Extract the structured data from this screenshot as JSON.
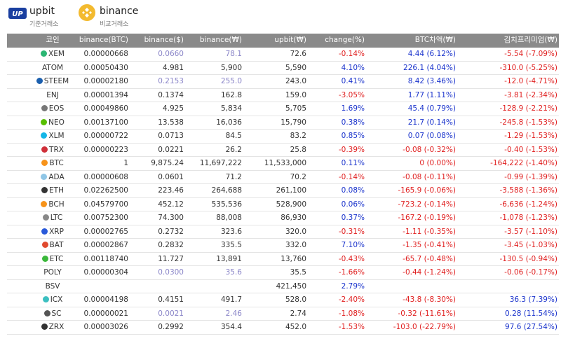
{
  "header": {
    "upbit": {
      "name": "upbit",
      "role": "기준거래소"
    },
    "binance": {
      "name": "binance",
      "role": "비교거래소"
    }
  },
  "table": {
    "columns": [
      "코인",
      "binance(BTC)",
      "binance($)",
      "binance(₩)",
      "upbit(₩)",
      "change(%)",
      "BTC차액(₩)",
      "김치프리미엄(₩)"
    ],
    "rows": [
      {
        "cells": [
          "XEM",
          "0.00000668",
          "0.0660",
          "78.1",
          "72.6",
          "-0.14%",
          "4.44 (6.12%)",
          "-5.54 (-7.09%)"
        ],
        "muted": true
      },
      {
        "cells": [
          "ATOM",
          "0.00050430",
          "4.981",
          "5,900",
          "5,590",
          "4.10%",
          "226.1 (4.04%)",
          "-310.0 (-5.25%)"
        ]
      },
      {
        "cells": [
          "STEEM",
          "0.00002180",
          "0.2153",
          "255.0",
          "243.0",
          "0.41%",
          "8.42 (3.46%)",
          "-12.0 (-4.71%)"
        ],
        "muted": true
      },
      {
        "cells": [
          "ENJ",
          "0.00001394",
          "0.1374",
          "162.8",
          "159.0",
          "-3.05%",
          "1.77 (1.11%)",
          "-3.81 (-2.34%)"
        ]
      },
      {
        "cells": [
          "EOS",
          "0.00049860",
          "4.925",
          "5,834",
          "5,705",
          "1.69%",
          "45.4 (0.79%)",
          "-128.9 (-2.21%)"
        ]
      },
      {
        "cells": [
          "NEO",
          "0.00137100",
          "13.538",
          "16,036",
          "15,790",
          "0.38%",
          "21.7 (0.14%)",
          "-245.8 (-1.53%)"
        ]
      },
      {
        "cells": [
          "XLM",
          "0.00000722",
          "0.0713",
          "84.5",
          "83.2",
          "0.85%",
          "0.07 (0.08%)",
          "-1.29 (-1.53%)"
        ]
      },
      {
        "cells": [
          "TRX",
          "0.00000223",
          "0.0221",
          "26.2",
          "25.8",
          "-0.39%",
          "-0.08 (-0.32%)",
          "-0.40 (-1.53%)"
        ]
      },
      {
        "cells": [
          "BTC",
          "1",
          "9,875.24",
          "11,697,222",
          "11,533,000",
          "0.11%",
          "0 (0.00%)",
          "-164,222 (-1.40%)"
        ]
      },
      {
        "cells": [
          "ADA",
          "0.00000608",
          "0.0601",
          "71.2",
          "70.2",
          "-0.14%",
          "-0.08 (-0.11%)",
          "-0.99 (-1.39%)"
        ]
      },
      {
        "cells": [
          "ETH",
          "0.02262500",
          "223.46",
          "264,688",
          "261,100",
          "0.08%",
          "-165.9 (-0.06%)",
          "-3,588 (-1.36%)"
        ]
      },
      {
        "cells": [
          "BCH",
          "0.04579700",
          "452.12",
          "535,536",
          "528,900",
          "0.06%",
          "-723.2 (-0.14%)",
          "-6,636 (-1.24%)"
        ]
      },
      {
        "cells": [
          "LTC",
          "0.00752300",
          "74.300",
          "88,008",
          "86,930",
          "0.37%",
          "-167.2 (-0.19%)",
          "-1,078 (-1.23%)"
        ]
      },
      {
        "cells": [
          "XRP",
          "0.00002765",
          "0.2732",
          "323.6",
          "320.0",
          "-0.31%",
          "-1.11 (-0.35%)",
          "-3.57 (-1.10%)"
        ]
      },
      {
        "cells": [
          "BAT",
          "0.00002867",
          "0.2832",
          "335.5",
          "332.0",
          "7.10%",
          "-1.35 (-0.41%)",
          "-3.45 (-1.03%)"
        ]
      },
      {
        "cells": [
          "ETC",
          "0.00118740",
          "11.727",
          "13,891",
          "13,760",
          "-0.43%",
          "-65.7 (-0.48%)",
          "-130.5 (-0.94%)"
        ]
      },
      {
        "cells": [
          "POLY",
          "0.00000304",
          "0.0300",
          "35.6",
          "35.5",
          "-1.66%",
          "-0.44 (-1.24%)",
          "-0.06 (-0.17%)"
        ],
        "muted": true
      },
      {
        "cells": [
          "BSV",
          null,
          null,
          null,
          "421,450",
          "2.79%",
          null,
          null
        ]
      },
      {
        "cells": [
          "ICX",
          "0.00004198",
          "0.4151",
          "491.7",
          "528.0",
          "-2.40%",
          "-43.8 (-8.30%)",
          "36.3 (7.39%)"
        ]
      },
      {
        "cells": [
          "SC",
          "0.00000021",
          "0.0021",
          "2.46",
          "2.74",
          "-1.08%",
          "-0.32 (-11.61%)",
          "0.28 (11.54%)"
        ],
        "muted": true
      },
      {
        "cells": [
          "ZRX",
          "0.00003026",
          "0.2992",
          "354.4",
          "452.0",
          "-1.53%",
          "-103.0 (-22.79%)",
          "97.6 (27.54%)"
        ]
      }
    ]
  }
}
